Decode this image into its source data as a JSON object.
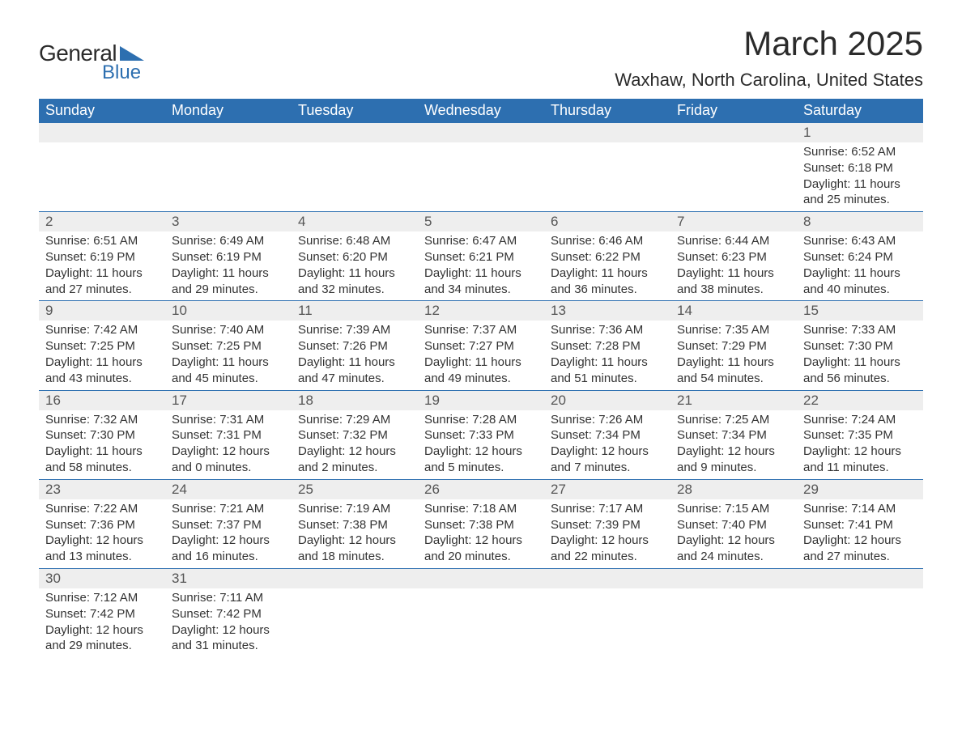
{
  "logo": {
    "text_general": "General",
    "text_blue": "Blue",
    "shape_color": "#2d6fb0"
  },
  "title": "March 2025",
  "location": "Waxhaw, North Carolina, United States",
  "colors": {
    "header_bg": "#2d6fb0",
    "header_text": "#ffffff",
    "daynum_bg": "#eeeeee",
    "border": "#2d6fb0",
    "body_text": "#333333"
  },
  "weekdays": [
    "Sunday",
    "Monday",
    "Tuesday",
    "Wednesday",
    "Thursday",
    "Friday",
    "Saturday"
  ],
  "weeks": [
    [
      null,
      null,
      null,
      null,
      null,
      null,
      {
        "day": "1",
        "sunrise": "Sunrise: 6:52 AM",
        "sunset": "Sunset: 6:18 PM",
        "daylight1": "Daylight: 11 hours",
        "daylight2": "and 25 minutes."
      }
    ],
    [
      {
        "day": "2",
        "sunrise": "Sunrise: 6:51 AM",
        "sunset": "Sunset: 6:19 PM",
        "daylight1": "Daylight: 11 hours",
        "daylight2": "and 27 minutes."
      },
      {
        "day": "3",
        "sunrise": "Sunrise: 6:49 AM",
        "sunset": "Sunset: 6:19 PM",
        "daylight1": "Daylight: 11 hours",
        "daylight2": "and 29 minutes."
      },
      {
        "day": "4",
        "sunrise": "Sunrise: 6:48 AM",
        "sunset": "Sunset: 6:20 PM",
        "daylight1": "Daylight: 11 hours",
        "daylight2": "and 32 minutes."
      },
      {
        "day": "5",
        "sunrise": "Sunrise: 6:47 AM",
        "sunset": "Sunset: 6:21 PM",
        "daylight1": "Daylight: 11 hours",
        "daylight2": "and 34 minutes."
      },
      {
        "day": "6",
        "sunrise": "Sunrise: 6:46 AM",
        "sunset": "Sunset: 6:22 PM",
        "daylight1": "Daylight: 11 hours",
        "daylight2": "and 36 minutes."
      },
      {
        "day": "7",
        "sunrise": "Sunrise: 6:44 AM",
        "sunset": "Sunset: 6:23 PM",
        "daylight1": "Daylight: 11 hours",
        "daylight2": "and 38 minutes."
      },
      {
        "day": "8",
        "sunrise": "Sunrise: 6:43 AM",
        "sunset": "Sunset: 6:24 PM",
        "daylight1": "Daylight: 11 hours",
        "daylight2": "and 40 minutes."
      }
    ],
    [
      {
        "day": "9",
        "sunrise": "Sunrise: 7:42 AM",
        "sunset": "Sunset: 7:25 PM",
        "daylight1": "Daylight: 11 hours",
        "daylight2": "and 43 minutes."
      },
      {
        "day": "10",
        "sunrise": "Sunrise: 7:40 AM",
        "sunset": "Sunset: 7:25 PM",
        "daylight1": "Daylight: 11 hours",
        "daylight2": "and 45 minutes."
      },
      {
        "day": "11",
        "sunrise": "Sunrise: 7:39 AM",
        "sunset": "Sunset: 7:26 PM",
        "daylight1": "Daylight: 11 hours",
        "daylight2": "and 47 minutes."
      },
      {
        "day": "12",
        "sunrise": "Sunrise: 7:37 AM",
        "sunset": "Sunset: 7:27 PM",
        "daylight1": "Daylight: 11 hours",
        "daylight2": "and 49 minutes."
      },
      {
        "day": "13",
        "sunrise": "Sunrise: 7:36 AM",
        "sunset": "Sunset: 7:28 PM",
        "daylight1": "Daylight: 11 hours",
        "daylight2": "and 51 minutes."
      },
      {
        "day": "14",
        "sunrise": "Sunrise: 7:35 AM",
        "sunset": "Sunset: 7:29 PM",
        "daylight1": "Daylight: 11 hours",
        "daylight2": "and 54 minutes."
      },
      {
        "day": "15",
        "sunrise": "Sunrise: 7:33 AM",
        "sunset": "Sunset: 7:30 PM",
        "daylight1": "Daylight: 11 hours",
        "daylight2": "and 56 minutes."
      }
    ],
    [
      {
        "day": "16",
        "sunrise": "Sunrise: 7:32 AM",
        "sunset": "Sunset: 7:30 PM",
        "daylight1": "Daylight: 11 hours",
        "daylight2": "and 58 minutes."
      },
      {
        "day": "17",
        "sunrise": "Sunrise: 7:31 AM",
        "sunset": "Sunset: 7:31 PM",
        "daylight1": "Daylight: 12 hours",
        "daylight2": "and 0 minutes."
      },
      {
        "day": "18",
        "sunrise": "Sunrise: 7:29 AM",
        "sunset": "Sunset: 7:32 PM",
        "daylight1": "Daylight: 12 hours",
        "daylight2": "and 2 minutes."
      },
      {
        "day": "19",
        "sunrise": "Sunrise: 7:28 AM",
        "sunset": "Sunset: 7:33 PM",
        "daylight1": "Daylight: 12 hours",
        "daylight2": "and 5 minutes."
      },
      {
        "day": "20",
        "sunrise": "Sunrise: 7:26 AM",
        "sunset": "Sunset: 7:34 PM",
        "daylight1": "Daylight: 12 hours",
        "daylight2": "and 7 minutes."
      },
      {
        "day": "21",
        "sunrise": "Sunrise: 7:25 AM",
        "sunset": "Sunset: 7:34 PM",
        "daylight1": "Daylight: 12 hours",
        "daylight2": "and 9 minutes."
      },
      {
        "day": "22",
        "sunrise": "Sunrise: 7:24 AM",
        "sunset": "Sunset: 7:35 PM",
        "daylight1": "Daylight: 12 hours",
        "daylight2": "and 11 minutes."
      }
    ],
    [
      {
        "day": "23",
        "sunrise": "Sunrise: 7:22 AM",
        "sunset": "Sunset: 7:36 PM",
        "daylight1": "Daylight: 12 hours",
        "daylight2": "and 13 minutes."
      },
      {
        "day": "24",
        "sunrise": "Sunrise: 7:21 AM",
        "sunset": "Sunset: 7:37 PM",
        "daylight1": "Daylight: 12 hours",
        "daylight2": "and 16 minutes."
      },
      {
        "day": "25",
        "sunrise": "Sunrise: 7:19 AM",
        "sunset": "Sunset: 7:38 PM",
        "daylight1": "Daylight: 12 hours",
        "daylight2": "and 18 minutes."
      },
      {
        "day": "26",
        "sunrise": "Sunrise: 7:18 AM",
        "sunset": "Sunset: 7:38 PM",
        "daylight1": "Daylight: 12 hours",
        "daylight2": "and 20 minutes."
      },
      {
        "day": "27",
        "sunrise": "Sunrise: 7:17 AM",
        "sunset": "Sunset: 7:39 PM",
        "daylight1": "Daylight: 12 hours",
        "daylight2": "and 22 minutes."
      },
      {
        "day": "28",
        "sunrise": "Sunrise: 7:15 AM",
        "sunset": "Sunset: 7:40 PM",
        "daylight1": "Daylight: 12 hours",
        "daylight2": "and 24 minutes."
      },
      {
        "day": "29",
        "sunrise": "Sunrise: 7:14 AM",
        "sunset": "Sunset: 7:41 PM",
        "daylight1": "Daylight: 12 hours",
        "daylight2": "and 27 minutes."
      }
    ],
    [
      {
        "day": "30",
        "sunrise": "Sunrise: 7:12 AM",
        "sunset": "Sunset: 7:42 PM",
        "daylight1": "Daylight: 12 hours",
        "daylight2": "and 29 minutes."
      },
      {
        "day": "31",
        "sunrise": "Sunrise: 7:11 AM",
        "sunset": "Sunset: 7:42 PM",
        "daylight1": "Daylight: 12 hours",
        "daylight2": "and 31 minutes."
      },
      null,
      null,
      null,
      null,
      null
    ]
  ]
}
